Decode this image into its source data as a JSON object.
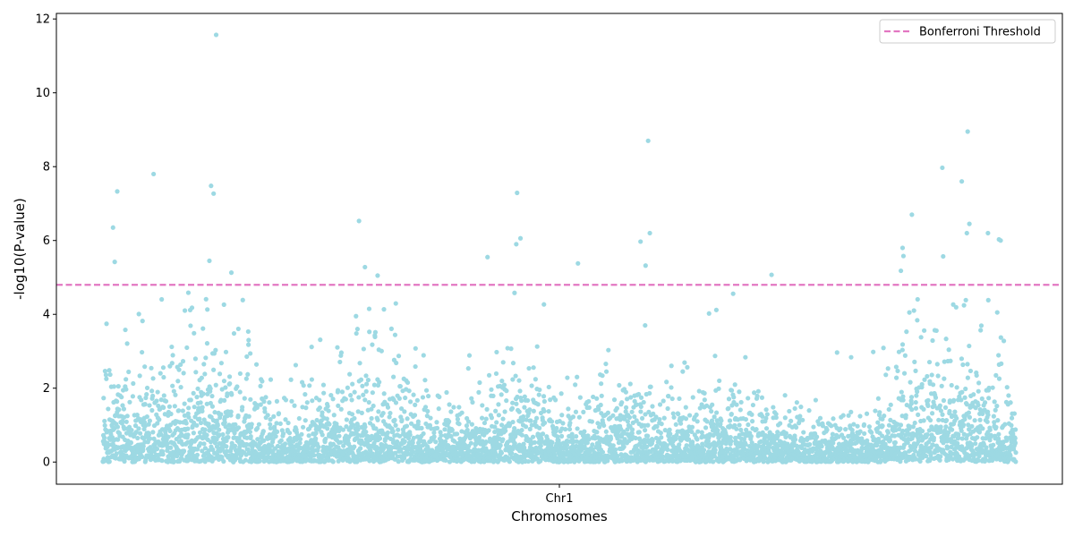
{
  "chart_data": {
    "type": "scatter",
    "title": "",
    "xlabel": "Chromosomes",
    "ylabel": "-log10(P-value)",
    "x_tick_labels": [
      "Chr1"
    ],
    "y_ticks": [
      0,
      2,
      4,
      6,
      8,
      10,
      12
    ],
    "ylim": [
      -0.6,
      12.15
    ],
    "xlim": [
      -55,
      1135
    ],
    "grid": false,
    "legend_position": "top-right",
    "point_color": "#9dd9e3",
    "threshold": {
      "name": "Bonferroni Threshold",
      "value": 4.8,
      "color": "#e377c2",
      "style": "dashed"
    },
    "n_points": 5000,
    "seed": 12345,
    "peaks": [
      {
        "x": 12,
        "y": 6.35
      },
      {
        "x": 14,
        "y": 5.42
      },
      {
        "x": 17,
        "y": 7.33
      },
      {
        "x": 60,
        "y": 7.8
      },
      {
        "x": 126,
        "y": 5.45
      },
      {
        "x": 128,
        "y": 7.48
      },
      {
        "x": 131,
        "y": 7.27
      },
      {
        "x": 134,
        "y": 11.57
      },
      {
        "x": 152,
        "y": 5.13
      },
      {
        "x": 303,
        "y": 6.53
      },
      {
        "x": 310,
        "y": 5.28
      },
      {
        "x": 325,
        "y": 5.05
      },
      {
        "x": 455,
        "y": 5.55
      },
      {
        "x": 490,
        "y": 7.29
      },
      {
        "x": 489,
        "y": 5.9
      },
      {
        "x": 494,
        "y": 6.06
      },
      {
        "x": 562,
        "y": 5.38
      },
      {
        "x": 636,
        "y": 5.97
      },
      {
        "x": 642,
        "y": 5.32
      },
      {
        "x": 645,
        "y": 8.7
      },
      {
        "x": 647,
        "y": 6.2
      },
      {
        "x": 791,
        "y": 5.07
      },
      {
        "x": 944,
        "y": 5.18
      },
      {
        "x": 946,
        "y": 5.8
      },
      {
        "x": 947,
        "y": 5.58
      },
      {
        "x": 957,
        "y": 6.7
      },
      {
        "x": 994,
        "y": 5.57
      },
      {
        "x": 993,
        "y": 7.97
      },
      {
        "x": 1016,
        "y": 7.6
      },
      {
        "x": 1022,
        "y": 6.2
      },
      {
        "x": 1023,
        "y": 8.95
      },
      {
        "x": 1025,
        "y": 6.45
      },
      {
        "x": 1047,
        "y": 6.2
      },
      {
        "x": 1060,
        "y": 6.03
      },
      {
        "x": 1062,
        "y": 6.0
      }
    ],
    "hotspots": [
      {
        "x": 40,
        "w": 70,
        "weight": 1.3
      },
      {
        "x": 140,
        "w": 50,
        "weight": 1.5
      },
      {
        "x": 290,
        "w": 60,
        "weight": 1.2
      },
      {
        "x": 360,
        "w": 40,
        "weight": 0.8
      },
      {
        "x": 490,
        "w": 50,
        "weight": 1.2
      },
      {
        "x": 620,
        "w": 50,
        "weight": 1.0
      },
      {
        "x": 740,
        "w": 50,
        "weight": 0.9
      },
      {
        "x": 960,
        "w": 40,
        "weight": 1.3
      },
      {
        "x": 1030,
        "w": 50,
        "weight": 1.6
      }
    ]
  }
}
